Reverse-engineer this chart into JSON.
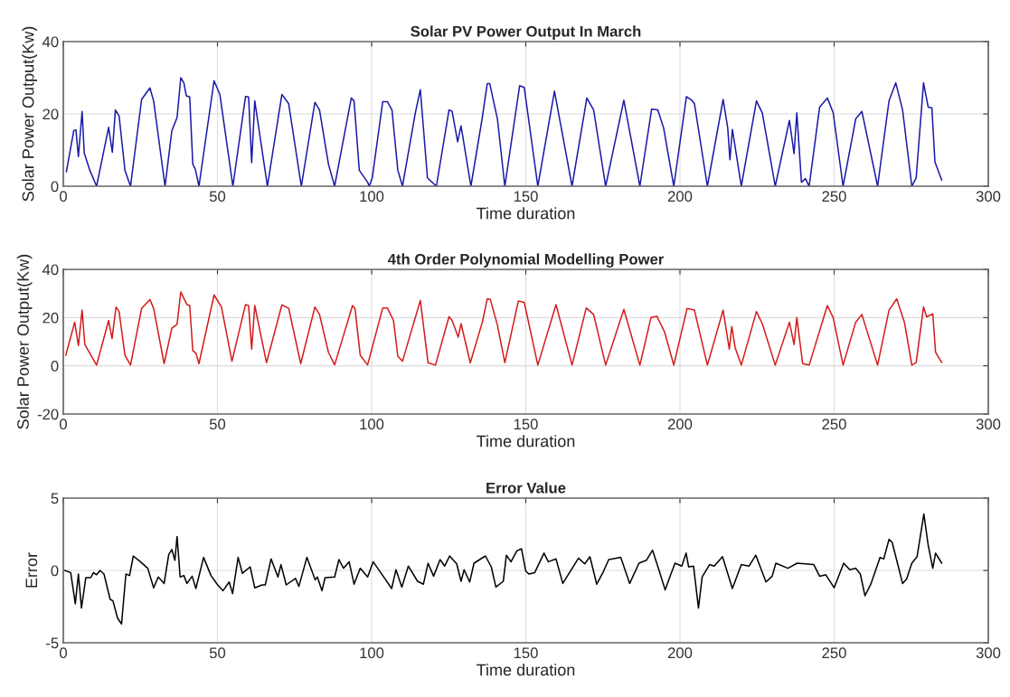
{
  "chart_data": [
    {
      "type": "line",
      "title": "Solar PV Power Output In March",
      "xlabel": "Time duration",
      "ylabel": "Solar Power Output(Kw)",
      "color": "#1a1aa8",
      "grid": true,
      "xlim": [
        0,
        300
      ],
      "xticks": [
        0,
        50,
        100,
        150,
        200,
        250,
        300
      ],
      "ylim": [
        0,
        40
      ],
      "yticks": [
        0,
        20,
        40
      ],
      "x": [
        1,
        3.4,
        4.1,
        4.9,
        6.1,
        6.8,
        8.6,
        10.8,
        14.7,
        15.9,
        16.9,
        18.1,
        20,
        21.8,
        25.4,
        28.1,
        29.3,
        33,
        35.2,
        36.9,
        38.1,
        39.1,
        39.9,
        41,
        42,
        42.8,
        44,
        48.9,
        50.8,
        55,
        59.1,
        60.1,
        61.1,
        62.1,
        66.2,
        70.9,
        73.1,
        77.2,
        81.6,
        83.1,
        86,
        88,
        93.4,
        94.3,
        96,
        98.7,
        99.2,
        100.2,
        103.6,
        105.1,
        106.6,
        108.5,
        110,
        114.2,
        115.8,
        118.1,
        121,
        125.1,
        126.1,
        127.9,
        129,
        132.2,
        135.9,
        137.5,
        138.3,
        140.8,
        143.2,
        148,
        149.5,
        153.9,
        159.3,
        165,
        169.8,
        172,
        175.9,
        181.8,
        187,
        190.8,
        192.8,
        194.7,
        198,
        202.1,
        203.8,
        204.7,
        208.9,
        214,
        215.5,
        216.2,
        217,
        219.9,
        224.8,
        226.7,
        230.9,
        235.5,
        237,
        237.9,
        239.4,
        240.7,
        241.9,
        245.3,
        247.8,
        249.7,
        252.9,
        257,
        259,
        264.1,
        267.8,
        270,
        272.2,
        275.2,
        276.6,
        279,
        280.5,
        281.7,
        282.7,
        284.9
      ],
      "values": [
        4,
        15.4,
        15.6,
        8.2,
        20.7,
        9.2,
        4.4,
        0,
        16.3,
        9.4,
        21.1,
        19.4,
        4.4,
        0,
        24,
        27.2,
        23.6,
        0,
        15.3,
        19,
        30,
        28.6,
        25,
        24.7,
        6.1,
        4.8,
        0,
        29.2,
        25.3,
        0,
        24.8,
        24.7,
        6.5,
        23.6,
        0,
        25.4,
        22.8,
        0,
        23.2,
        21.1,
        6.1,
        0,
        24.4,
        23.6,
        4.4,
        1.1,
        0,
        2.3,
        23.4,
        23.4,
        21.1,
        4.4,
        0,
        20.4,
        26.7,
        2.3,
        0,
        21.1,
        20.7,
        12.3,
        16.7,
        0,
        19,
        28.4,
        28.4,
        18.6,
        0,
        27.8,
        27.3,
        0,
        26.3,
        0,
        24.4,
        21.1,
        0,
        23.8,
        0,
        21.3,
        21.1,
        16.1,
        0,
        24.8,
        23.8,
        22.8,
        0,
        24,
        16.1,
        7.3,
        15.7,
        0,
        23.6,
        20.3,
        0,
        18.2,
        9,
        20.3,
        1.1,
        2.1,
        0,
        21.9,
        24.4,
        20.3,
        0,
        18.6,
        20.7,
        0,
        23.6,
        28.6,
        21.1,
        0,
        2.3,
        28.6,
        21.9,
        21.7,
        6.7,
        1.7
      ]
    },
    {
      "type": "line",
      "title": "4th Order Polynomial Modelling Power",
      "xlabel": "Time duration",
      "ylabel": "Solar Power Output(Kw)",
      "color": "#d41c1c",
      "grid": true,
      "xlim": [
        0,
        300
      ],
      "xticks": [
        0,
        50,
        100,
        150,
        200,
        250,
        300
      ],
      "ylim": [
        -20,
        40
      ],
      "yticks": [
        -20,
        0,
        20,
        40
      ],
      "x": [
        0.8,
        3.7,
        4.9,
        6.1,
        7,
        10.8,
        14.7,
        15.8,
        17.1,
        18.1,
        20,
        21.8,
        25.4,
        28.1,
        29.3,
        32.7,
        35.2,
        36.9,
        38.1,
        40.1,
        41,
        42,
        43,
        44,
        48.9,
        51.3,
        54.7,
        59.1,
        60.1,
        61.1,
        62.1,
        65.9,
        70.9,
        73.1,
        77,
        81.6,
        83.1,
        86,
        88,
        93.8,
        94.6,
        96.3,
        98.7,
        103.6,
        105.1,
        107.1,
        108.5,
        110,
        115.8,
        118.3,
        120.7,
        125.1,
        126.1,
        128.1,
        129,
        132,
        135.9,
        137.5,
        138.5,
        140.8,
        143.2,
        147.6,
        149.5,
        153.9,
        159.8,
        165,
        169.6,
        172,
        175.9,
        181.8,
        187,
        190.6,
        192.5,
        195,
        198,
        202.3,
        204.7,
        208.9,
        214,
        216,
        216.8,
        217.9,
        219.9,
        224.8,
        226.7,
        230.9,
        235.5,
        237,
        237.9,
        239.8,
        241.9,
        247.8,
        249.7,
        252.9,
        257,
        259,
        264.1,
        267.8,
        270.3,
        272.8,
        275.2,
        276.6,
        279,
        280,
        282,
        282.9,
        284.9
      ],
      "values": [
        4.4,
        18.1,
        8.4,
        23.1,
        8.8,
        0.3,
        18.8,
        11.3,
        24.4,
        22.5,
        4.4,
        0.3,
        23.8,
        27.5,
        23.8,
        0.9,
        15.6,
        17.3,
        30.6,
        25.4,
        25,
        6.3,
        5.3,
        0.9,
        29.4,
        24.4,
        1.9,
        25.4,
        25,
        6.9,
        25,
        1.3,
        25.3,
        23.8,
        0.9,
        24.4,
        21.3,
        5.6,
        0.4,
        25,
        23.8,
        4.4,
        0.4,
        24,
        24,
        18.8,
        4,
        1.9,
        27.1,
        1.3,
        0.3,
        20.4,
        18.8,
        11.9,
        17.5,
        1.3,
        18.1,
        27.8,
        27.5,
        16.9,
        1.3,
        26.9,
        26.3,
        0.3,
        25.4,
        0.3,
        24,
        21.3,
        0.3,
        23.4,
        0.3,
        20,
        20.6,
        14.1,
        0.3,
        23.8,
        23.1,
        0.3,
        23.1,
        6.9,
        16.3,
        7.5,
        0.3,
        22.5,
        17.5,
        0.3,
        18.1,
        8.8,
        20,
        0.9,
        0.3,
        25,
        20,
        0.3,
        18.1,
        21.3,
        0.3,
        23.1,
        27.8,
        18.1,
        0.3,
        1.3,
        24.4,
        20.3,
        21.6,
        5.6,
        1.3
      ]
    },
    {
      "type": "line",
      "title": "Error Value",
      "xlabel": "Time duration",
      "ylabel": "Error",
      "color": "#000000",
      "grid": true,
      "xlim": [
        0,
        300
      ],
      "xticks": [
        0,
        50,
        100,
        150,
        200,
        250,
        300
      ],
      "ylim": [
        -5,
        5
      ],
      "yticks": [
        -5,
        0,
        5
      ],
      "x": [
        0.5,
        2.4,
        3.9,
        4.9,
        5.9,
        7.3,
        8.9,
        9.8,
        10.8,
        11.9,
        13.2,
        15.2,
        16.1,
        17.6,
        18.9,
        20.3,
        21.5,
        22.7,
        25,
        27.4,
        29.3,
        30.8,
        32.7,
        34.2,
        35.2,
        36.2,
        36.9,
        37.9,
        39.1,
        40.1,
        41.8,
        43,
        45.5,
        47.9,
        49.9,
        51.8,
        53.8,
        54.9,
        56.7,
        58.1,
        60.6,
        62.1,
        64.5,
        65.5,
        67.4,
        69.6,
        70.6,
        72.3,
        75.3,
        76.4,
        79,
        81.7,
        82.4,
        83.9,
        84.9,
        88,
        89.4,
        90.9,
        92.7,
        94.3,
        96.3,
        98.7,
        100.5,
        103.6,
        106.5,
        107.9,
        109.8,
        111.9,
        114.9,
        116.8,
        118.3,
        120.1,
        122.2,
        123.7,
        125.3,
        127.6,
        129,
        130,
        131.8,
        133.2,
        136.9,
        138.8,
        140.3,
        142.7,
        143.7,
        145.2,
        147.1,
        148.6,
        150,
        151,
        152.9,
        155.9,
        157.3,
        159.8,
        162,
        167.1,
        169.1,
        170.8,
        173,
        174.9,
        176.9,
        180.8,
        183.7,
        186.7,
        189.1,
        191.1,
        193,
        195.2,
        196.9,
        198.4,
        200.6,
        202,
        202.8,
        204.4,
        206,
        207.2,
        209.6,
        211.1,
        213.8,
        217,
        219.9,
        222.4,
        224.6,
        227.9,
        229.9,
        231.1,
        235,
        238,
        243.4,
        245.3,
        247.3,
        250,
        253.1,
        255.1,
        257,
        258.5,
        260,
        261.9,
        264.9,
        266.1,
        267.8,
        268.8,
        270.3,
        272.2,
        273.5,
        275.2,
        276.9,
        279.1,
        280.5,
        282,
        282.9,
        284.9
      ],
      "values": [
        0,
        -0.15,
        -2.3,
        -0.25,
        -2.6,
        -0.5,
        -0.5,
        -0.15,
        -0.3,
        0,
        -0.25,
        -2,
        -2.1,
        -3.3,
        -3.7,
        -0.25,
        -0.35,
        1,
        0.6,
        0.15,
        -1.2,
        -0.45,
        -0.9,
        1.1,
        1.45,
        0.7,
        2.35,
        -0.45,
        -0.35,
        -0.9,
        -0.4,
        -1.25,
        0.9,
        -0.35,
        -0.95,
        -1.4,
        -0.8,
        -1.6,
        0.9,
        -0.2,
        0.25,
        -1.2,
        -1,
        -1,
        0.8,
        -0.45,
        0.4,
        -1,
        -0.55,
        -1.1,
        0.9,
        -0.65,
        -0.45,
        -1.4,
        -0.5,
        -0.45,
        0.75,
        0.15,
        0.6,
        -0.95,
        0.15,
        -0.45,
        0.6,
        -0.35,
        -1.25,
        0.05,
        -1.15,
        0.3,
        -0.75,
        -0.95,
        0.5,
        -0.4,
        0.75,
        0.3,
        1,
        0.45,
        -0.75,
        0.05,
        -0.8,
        0.5,
        1,
        0.25,
        -1.15,
        -0.75,
        1.05,
        0.6,
        1.35,
        1.5,
        -0.05,
        -0.25,
        -0.15,
        1.2,
        0.6,
        0.8,
        -0.9,
        0.85,
        0.45,
        0.95,
        -0.95,
        -0.2,
        0.75,
        0.9,
        -0.9,
        0.5,
        0.7,
        1.4,
        0.15,
        -1.35,
        -0.35,
        0.5,
        0.3,
        1.2,
        0.25,
        0.3,
        -2.6,
        -0.45,
        0.4,
        0.3,
        0.95,
        -1.25,
        0.4,
        0.3,
        1.05,
        -0.8,
        -0.4,
        0.5,
        0.15,
        0.5,
        0.4,
        -0.4,
        -0.3,
        -1.2,
        0.5,
        0.05,
        0.15,
        -0.25,
        -1.75,
        -0.95,
        0.9,
        0.8,
        2.15,
        1.95,
        0.7,
        -0.9,
        -0.6,
        0.5,
        0.95,
        3.9,
        1.75,
        0.15,
        1.2,
        0.5
      ]
    }
  ]
}
